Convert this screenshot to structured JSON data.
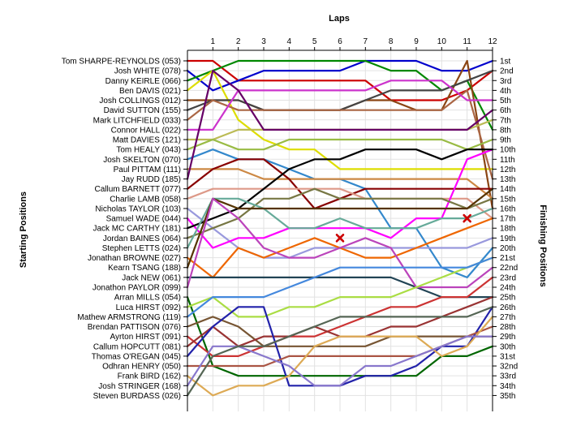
{
  "chart_data": {
    "type": "line",
    "title": "Laps",
    "xlabel": "Laps",
    "ylabel_left": "Starting Positions",
    "ylabel_right": "Finishing Positions",
    "x": [
      0,
      1,
      2,
      3,
      4,
      5,
      6,
      7,
      8,
      9,
      10,
      11,
      12
    ],
    "x_tick_labels": [
      "1",
      "2",
      "3",
      "4",
      "5",
      "6",
      "7",
      "8",
      "9",
      "10",
      "11",
      "12"
    ],
    "ylim": [
      1,
      36
    ],
    "y_inverted": true,
    "grid": true,
    "starting_labels": [
      "Tom SHARPE-REYNOLDS (053)",
      "Josh WHITE (078)",
      "Danny KEIRLE (066)",
      "Ben DAVIS (021)",
      "Josh COLLINGS (012)",
      "David SUTTON (155)",
      "Mark LITCHFIELD (033)",
      "Connor HALL (022)",
      "Matt DAVIES (121)",
      "Tom HEALY (043)",
      "Josh SKELTON (070)",
      "Paul PITTAM (111)",
      "Jay RUDD (185)",
      "Callum BARNETT (077)",
      "Charlie LAMB (058)",
      "Nicholas TAYLOR (103)",
      "Samuel WADE (044)",
      "Jack MC CARTHY (181)",
      "Jordan BAINES (064)",
      "Stephen LETTS (024)",
      "Jonathan BROWNE (027)",
      "Kearn TSANG (188)",
      "Jack NEW (061)",
      "Jonathon PAYLOR (099)",
      "Arran MILLS (054)",
      "Luca HIRST (092)",
      "Mathew ARMSTRONG (119)",
      "Brendan PATTISON (076)",
      "Ayrton HIRST (091)",
      "Callum HOPCUTT (081)",
      "Thomas O'REGAN (045)",
      "Odhran  HENRY (050)",
      "Frank BIRD (162)",
      "Josh STRINGER (168)",
      "Steven BURDASS (026)"
    ],
    "finishing_labels": [
      "1st",
      "2nd",
      "3rd",
      "4th",
      "5th",
      "6th",
      "7th",
      "8th",
      "9th",
      "10th",
      "11th",
      "12th",
      "13th",
      "14th",
      "15th",
      "16th",
      "17th",
      "18th",
      "19th",
      "20th",
      "21st",
      "22nd",
      "23rd",
      "24th",
      "25th",
      "26th",
      "27th",
      "28th",
      "29th",
      "30th",
      "31st",
      "32nd",
      "33rd",
      "34th",
      "35th"
    ],
    "finishing_positions": [
      1,
      2,
      3,
      4,
      5,
      6,
      7,
      8,
      9,
      10,
      11,
      12,
      13,
      14,
      15,
      16,
      17,
      18,
      19,
      20,
      21,
      22,
      23,
      24,
      25,
      26,
      27,
      28,
      29,
      30,
      31,
      32,
      33,
      34,
      35
    ],
    "series": [
      {
        "color": "#cc0000",
        "values": [
          1,
          1,
          3,
          3,
          3,
          3,
          3,
          3,
          5,
          5,
          5,
          4,
          2
        ]
      },
      {
        "color": "#0000cc",
        "values": [
          2,
          4,
          3,
          2,
          2,
          2,
          2,
          1,
          1,
          1,
          2,
          2,
          1
        ]
      },
      {
        "color": "#008800",
        "values": [
          3,
          2,
          1,
          1,
          1,
          1,
          1,
          1,
          2,
          2,
          4,
          3,
          8
        ]
      },
      {
        "color": "#dddd00",
        "values": [
          4,
          2,
          7,
          9,
          10,
          10,
          12,
          12,
          12,
          12,
          12,
          12,
          12
        ]
      },
      {
        "color": "#8b4513",
        "values": [
          5,
          5,
          5,
          6,
          6,
          6,
          6,
          5,
          5,
          6,
          6,
          1,
          16
        ]
      },
      {
        "color": "#444444",
        "values": [
          6,
          5,
          5,
          6,
          6,
          6,
          6,
          5,
          4,
          4,
          4,
          3,
          2
        ]
      },
      {
        "color": "#aa6644",
        "values": [
          7,
          5,
          6,
          6,
          6,
          6,
          6,
          6,
          6,
          6,
          6,
          4,
          13
        ]
      },
      {
        "color": "#cc33cc",
        "values": [
          8,
          8,
          4,
          4,
          4,
          4,
          4,
          4,
          3,
          3,
          3,
          5,
          5
        ]
      },
      {
        "color": "#bbbb55",
        "values": [
          9,
          9,
          8,
          8,
          8,
          8,
          8,
          8,
          8,
          8,
          8,
          8,
          7
        ]
      },
      {
        "color": "#99bb44",
        "values": [
          10,
          9,
          10,
          10,
          9,
          9,
          9,
          9,
          9,
          9,
          9,
          10,
          9
        ]
      },
      {
        "color": "#3388cc",
        "values": [
          11,
          10,
          11,
          11,
          12,
          13,
          13,
          14,
          18,
          18,
          22,
          23,
          20
        ]
      },
      {
        "color": "#cc8844",
        "values": [
          12,
          12,
          12,
          13,
          13,
          13,
          13,
          13,
          13,
          13,
          13,
          13,
          15
        ]
      },
      {
        "color": "#660066",
        "values": [
          13,
          2,
          4,
          8,
          8,
          8,
          8,
          8,
          8,
          8,
          8,
          8,
          6
        ]
      },
      {
        "color": "#880000",
        "values": [
          14,
          12,
          11,
          11,
          13,
          16,
          15,
          14,
          14,
          14,
          14,
          14,
          14
        ]
      },
      {
        "color": "#dd9988",
        "values": [
          15,
          14,
          14,
          14,
          14,
          14,
          14,
          15,
          15,
          15,
          15,
          15,
          17
        ]
      },
      {
        "color": "#9999dd",
        "values": [
          16,
          18,
          20,
          21,
          21,
          20,
          20,
          20,
          20,
          20,
          20,
          20,
          19
        ]
      },
      {
        "color": "#ff00ff",
        "values": [
          17,
          20,
          19,
          19,
          18,
          18,
          18,
          18,
          19,
          17,
          17,
          11,
          10
        ]
      },
      {
        "color": "#000000",
        "values": [
          18,
          17,
          16,
          14,
          12,
          11,
          11,
          10,
          10,
          10,
          11,
          10,
          10
        ]
      },
      {
        "color": "#777744",
        "values": [
          19,
          18,
          17,
          15,
          15,
          14,
          15,
          15,
          15,
          15,
          15,
          16,
          15
        ]
      },
      {
        "color": "#66aa99",
        "values": [
          20,
          15,
          15,
          16,
          18,
          18,
          17,
          18,
          18,
          18,
          17,
          17,
          16
        ]
      },
      {
        "color": "#ee6600",
        "values": [
          21,
          23,
          20,
          21,
          20,
          19,
          20,
          21,
          21,
          20,
          19,
          18,
          17
        ]
      },
      {
        "color": "#553300",
        "values": [
          22,
          15,
          16,
          16,
          16,
          16,
          16,
          16,
          16,
          16,
          16,
          16,
          14
        ]
      },
      {
        "color": "#224455",
        "values": [
          23,
          23,
          23,
          23,
          23,
          23,
          23,
          23,
          23,
          24,
          25,
          25,
          25
        ]
      },
      {
        "color": "#bb44bb",
        "values": [
          24,
          15,
          17,
          20,
          21,
          21,
          20,
          19,
          20,
          24,
          24,
          24,
          22
        ]
      },
      {
        "color": "#006600",
        "values": [
          25,
          32,
          33,
          33,
          33,
          33,
          33,
          33,
          33,
          33,
          31,
          31,
          30
        ]
      },
      {
        "color": "#aadd44",
        "values": [
          26,
          25,
          27,
          27,
          26,
          26,
          25,
          25,
          25,
          24,
          23,
          22,
          21
        ]
      },
      {
        "color": "#4488dd",
        "values": [
          27,
          25,
          25,
          25,
          24,
          23,
          22,
          22,
          22,
          22,
          22,
          22,
          21
        ]
      },
      {
        "color": "#775533",
        "values": [
          28,
          27,
          28,
          30,
          30,
          30,
          30,
          30,
          29,
          29,
          29,
          29,
          29
        ]
      },
      {
        "color": "#cc3333",
        "values": [
          29,
          31,
          31,
          30,
          29,
          29,
          28,
          27,
          26,
          26,
          25,
          25,
          23
        ]
      },
      {
        "color": "#993333",
        "values": [
          30,
          28,
          30,
          29,
          29,
          28,
          29,
          29,
          28,
          28,
          27,
          26,
          25
        ]
      },
      {
        "color": "#2222aa",
        "values": [
          31,
          28,
          26,
          26,
          34,
          34,
          34,
          33,
          33,
          32,
          30,
          30,
          26
        ]
      },
      {
        "color": "#aa5544",
        "values": [
          32,
          32,
          32,
          32,
          31,
          31,
          31,
          31,
          31,
          31,
          30,
          29,
          28
        ]
      },
      {
        "color": "#ddaa55",
        "values": [
          33,
          35,
          34,
          34,
          33,
          30,
          29,
          29,
          29,
          29,
          31,
          30,
          27
        ]
      },
      {
        "color": "#8877cc",
        "values": [
          34,
          30,
          30,
          31,
          32,
          34,
          34,
          32,
          32,
          31,
          30,
          29,
          29
        ]
      },
      {
        "color": "#556655",
        "values": [
          35,
          31,
          30,
          30,
          29,
          28,
          27,
          27,
          27,
          27,
          27,
          27,
          26
        ]
      }
    ],
    "markers": [
      {
        "shape": "x",
        "color": "#cc0000",
        "lap": 6,
        "position": 19
      },
      {
        "shape": "x",
        "color": "#cc0000",
        "lap": 11,
        "position": 17
      }
    ]
  }
}
